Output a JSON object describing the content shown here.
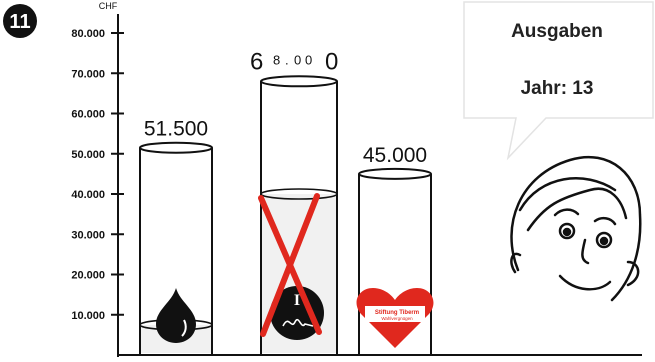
{
  "badge": {
    "number": "11"
  },
  "chart_data": {
    "type": "bar",
    "ylabel": "CHF",
    "ylim": [
      0,
      80000
    ],
    "yticks": [
      {
        "value": 10000,
        "label": "10.000"
      },
      {
        "value": 20000,
        "label": "20.000"
      },
      {
        "value": 30000,
        "label": "30.000"
      },
      {
        "value": 40000,
        "label": "40.000"
      },
      {
        "value": 50000,
        "label": "50.000"
      },
      {
        "value": 60000,
        "label": "60.000"
      },
      {
        "value": 70000,
        "label": "70.000"
      },
      {
        "value": 80000,
        "label": "80.000"
      }
    ],
    "bars": [
      {
        "icon": "black-drop-icon",
        "fill_value": 51500,
        "fill_value_label": "51.500",
        "level_value": 7500
      },
      {
        "icon": "crossed-seal-icon",
        "fill_value": 68000,
        "fill_value_label": "68.000",
        "level_value": 40000,
        "crossed": true
      },
      {
        "icon": "heart-logo-icon",
        "fill_value": 45000,
        "fill_value_label": "45.000",
        "level_value": 0
      }
    ],
    "grid": false
  },
  "bar_value_display": {
    "second_bar_parts": [
      "6",
      "8",
      ".",
      "0",
      "0",
      "0"
    ]
  },
  "heart_logo_text": {
    "line1": "Stiftung Tiberm",
    "line2": "Wahlvergnügen"
  },
  "speech_bubble": {
    "title": "Ausgaben",
    "year_label": "Jahr: 13"
  },
  "colors": {
    "cross": "#e0281e",
    "heart": "#e0281e",
    "ink": "#111111"
  }
}
